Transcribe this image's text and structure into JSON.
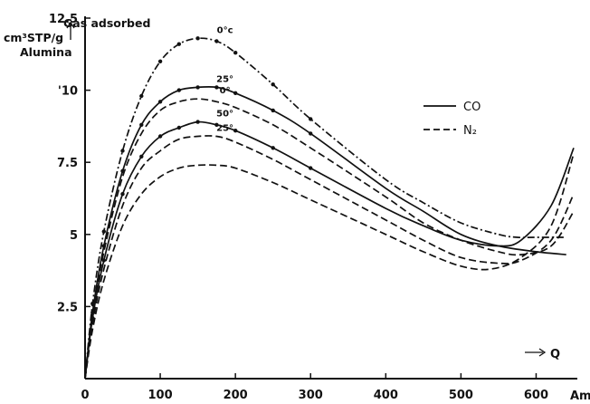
{
  "chart_data": {
    "type": "line",
    "xlim": [
      0,
      650
    ],
    "ylim": [
      0,
      12.5
    ],
    "xticks": [
      "0",
      "100",
      "200",
      "300",
      "400",
      "500",
      "600"
    ],
    "yticks": [
      {
        "value": 2.5,
        "label": "2.5"
      },
      {
        "value": 5,
        "label": "5"
      },
      {
        "value": 7.5,
        "label": "7.5"
      },
      {
        "value": 10,
        "label": "'10"
      },
      {
        "value": 12.5,
        "label": "12.5"
      }
    ],
    "x_unit_label": "Am",
    "x_arrow_label": "Q",
    "y_axis_title": [
      "cm³STP/g",
      "Alumina"
    ],
    "y_annotation": "Gas adsorbed",
    "grid": false,
    "legend_position": "top-right",
    "legend": [
      {
        "name": "CO",
        "style": "solid"
      },
      {
        "name": "N₂",
        "style": "dashed"
      }
    ],
    "series": [
      {
        "gas": "CO",
        "label": "0°c",
        "style": "dashdot",
        "points": [
          [
            0,
            0
          ],
          [
            10,
            2.6
          ],
          [
            25,
            5.1
          ],
          [
            50,
            7.9
          ],
          [
            75,
            9.8
          ],
          [
            100,
            11.0
          ],
          [
            125,
            11.6
          ],
          [
            150,
            11.8
          ],
          [
            175,
            11.7
          ],
          [
            200,
            11.3
          ],
          [
            250,
            10.2
          ],
          [
            300,
            9.0
          ],
          [
            400,
            6.9
          ],
          [
            450,
            6.1
          ],
          [
            500,
            5.4
          ],
          [
            550,
            5.0
          ],
          [
            575,
            4.9
          ],
          [
            600,
            4.9
          ],
          [
            640,
            4.9
          ]
        ]
      },
      {
        "gas": "CO",
        "label": "25°",
        "style": "solid",
        "points": [
          [
            0,
            0
          ],
          [
            10,
            2.3
          ],
          [
            25,
            4.6
          ],
          [
            50,
            7.2
          ],
          [
            75,
            8.8
          ],
          [
            100,
            9.6
          ],
          [
            125,
            10.0
          ],
          [
            150,
            10.1
          ],
          [
            175,
            10.1
          ],
          [
            200,
            9.9
          ],
          [
            250,
            9.3
          ],
          [
            300,
            8.5
          ],
          [
            400,
            6.6
          ],
          [
            450,
            5.8
          ],
          [
            500,
            5.0
          ],
          [
            550,
            4.6
          ],
          [
            600,
            4.4
          ],
          [
            640,
            4.3
          ]
        ]
      },
      {
        "gas": "CO",
        "label": "50°",
        "style": "solid",
        "points": [
          [
            0,
            0
          ],
          [
            10,
            2.1
          ],
          [
            25,
            4.1
          ],
          [
            50,
            6.4
          ],
          [
            75,
            7.7
          ],
          [
            100,
            8.4
          ],
          [
            125,
            8.7
          ],
          [
            150,
            8.9
          ],
          [
            175,
            8.8
          ],
          [
            200,
            8.6
          ],
          [
            250,
            8.0
          ],
          [
            300,
            7.3
          ],
          [
            400,
            5.9
          ],
          [
            450,
            5.3
          ],
          [
            500,
            4.8
          ],
          [
            550,
            4.6
          ],
          [
            580,
            4.8
          ],
          [
            620,
            6.0
          ],
          [
            650,
            8.0
          ]
        ]
      },
      {
        "gas": "N₂",
        "label": "0°",
        "style": "dashed",
        "points": [
          [
            0,
            0
          ],
          [
            10,
            2.2
          ],
          [
            25,
            4.4
          ],
          [
            50,
            7.0
          ],
          [
            75,
            8.5
          ],
          [
            100,
            9.3
          ],
          [
            125,
            9.6
          ],
          [
            150,
            9.7
          ],
          [
            175,
            9.6
          ],
          [
            200,
            9.4
          ],
          [
            250,
            8.8
          ],
          [
            300,
            8.0
          ],
          [
            400,
            6.3
          ],
          [
            450,
            5.4
          ],
          [
            500,
            4.8
          ],
          [
            550,
            4.4
          ],
          [
            580,
            4.3
          ],
          [
            620,
            4.6
          ],
          [
            650,
            5.8
          ]
        ]
      },
      {
        "gas": "N₂",
        "label": "25°",
        "style": "dashed",
        "points": [
          [
            0,
            0
          ],
          [
            10,
            1.9
          ],
          [
            25,
            3.8
          ],
          [
            50,
            6.0
          ],
          [
            75,
            7.3
          ],
          [
            100,
            7.9
          ],
          [
            125,
            8.3
          ],
          [
            150,
            8.4
          ],
          [
            175,
            8.4
          ],
          [
            200,
            8.2
          ],
          [
            250,
            7.6
          ],
          [
            300,
            6.9
          ],
          [
            400,
            5.5
          ],
          [
            450,
            4.8
          ],
          [
            500,
            4.2
          ],
          [
            550,
            4.0
          ],
          [
            580,
            4.1
          ],
          [
            620,
            4.8
          ],
          [
            650,
            6.4
          ]
        ]
      },
      {
        "gas": "N₂",
        "label": "50°",
        "style": "dashed",
        "points": [
          [
            0,
            0
          ],
          [
            10,
            1.7
          ],
          [
            25,
            3.4
          ],
          [
            50,
            5.3
          ],
          [
            75,
            6.4
          ],
          [
            100,
            7.0
          ],
          [
            125,
            7.3
          ],
          [
            150,
            7.4
          ],
          [
            175,
            7.4
          ],
          [
            200,
            7.3
          ],
          [
            250,
            6.8
          ],
          [
            300,
            6.2
          ],
          [
            400,
            5.0
          ],
          [
            450,
            4.4
          ],
          [
            500,
            3.9
          ],
          [
            540,
            3.8
          ],
          [
            580,
            4.2
          ],
          [
            620,
            5.3
          ],
          [
            650,
            7.8
          ]
        ]
      }
    ]
  }
}
